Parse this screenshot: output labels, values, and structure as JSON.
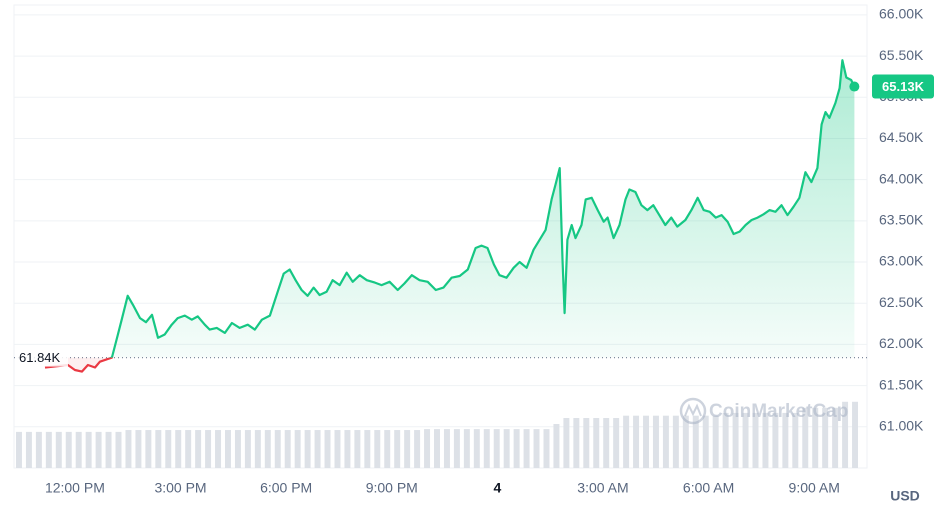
{
  "chart_data": {
    "type": "line",
    "x": [
      11.15,
      11.8,
      12.0,
      12.2,
      12.37,
      12.57,
      12.71,
      13.05,
      13.22,
      13.33,
      13.5,
      13.65,
      13.85,
      14.02,
      14.19,
      14.36,
      14.55,
      14.75,
      14.92,
      15.12,
      15.32,
      15.49,
      15.69,
      15.83,
      16.03,
      16.26,
      16.46,
      16.68,
      16.91,
      17.11,
      17.31,
      17.54,
      17.76,
      17.93,
      18.1,
      18.27,
      18.44,
      18.61,
      18.78,
      18.95,
      19.15,
      19.32,
      19.52,
      19.72,
      19.89,
      20.09,
      20.29,
      20.52,
      20.71,
      20.94,
      21.17,
      21.36,
      21.57,
      21.79,
      22.02,
      22.25,
      22.47,
      22.7,
      22.93,
      23.16,
      23.38,
      23.55,
      23.72,
      23.9,
      24.06,
      24.26,
      24.46,
      24.63,
      24.83,
      25.03,
      25.2,
      25.37,
      25.54,
      25.65,
      25.77,
      25.85,
      25.91,
      25.99,
      26.11,
      26.22,
      26.39,
      26.51,
      26.68,
      26.85,
      27.02,
      27.13,
      27.3,
      27.47,
      27.64,
      27.75,
      27.92,
      28.09,
      28.26,
      28.43,
      28.6,
      28.77,
      28.94,
      29.11,
      29.34,
      29.51,
      29.69,
      29.86,
      30.03,
      30.2,
      30.37,
      30.54,
      30.71,
      30.88,
      31.05,
      31.22,
      31.39,
      31.56,
      31.73,
      31.9,
      32.07,
      32.24,
      32.41,
      32.58,
      32.75,
      32.92,
      33.09,
      33.21,
      33.32,
      33.43,
      33.6,
      33.72,
      33.8,
      33.91,
      34.05,
      34.14
    ],
    "series": [
      {
        "color": "#16c784",
        "negative_color": "#ea3943",
        "values": [
          61720,
          61750,
          61690,
          61670,
          61750,
          61720,
          61790,
          61840,
          62120,
          62300,
          62590,
          62480,
          62320,
          62270,
          62360,
          62080,
          62120,
          62240,
          62320,
          62350,
          62300,
          62340,
          62240,
          62180,
          62200,
          62140,
          62260,
          62200,
          62240,
          62180,
          62300,
          62350,
          62640,
          62860,
          62910,
          62780,
          62660,
          62590,
          62690,
          62600,
          62640,
          62780,
          62720,
          62870,
          62760,
          62840,
          62780,
          62750,
          62720,
          62760,
          62660,
          62740,
          62840,
          62780,
          62760,
          62660,
          62690,
          62810,
          62830,
          62910,
          63170,
          63200,
          63170,
          62970,
          62840,
          62810,
          62930,
          63000,
          62930,
          63150,
          63270,
          63390,
          63760,
          63940,
          64140,
          63030,
          62380,
          63270,
          63450,
          63290,
          63450,
          63760,
          63780,
          63630,
          63490,
          63540,
          63290,
          63450,
          63760,
          63880,
          63850,
          63690,
          63630,
          63690,
          63570,
          63450,
          63540,
          63430,
          63510,
          63630,
          63780,
          63630,
          63610,
          63540,
          63570,
          63490,
          63340,
          63370,
          63450,
          63510,
          63540,
          63580,
          63630,
          63610,
          63690,
          63570,
          63670,
          63780,
          64090,
          63970,
          64140,
          64670,
          64820,
          64750,
          64930,
          65110,
          65450,
          65240,
          65210,
          65130
        ]
      }
    ],
    "xlim": [
      10.27,
      34.3
    ],
    "xticks": [
      {
        "value": 12,
        "label": "12:00 PM"
      },
      {
        "value": 15,
        "label": "3:00 PM"
      },
      {
        "value": 18,
        "label": "6:00 PM"
      },
      {
        "value": 21,
        "label": "9:00 PM"
      },
      {
        "value": 24,
        "label": "4"
      },
      {
        "value": 27,
        "label": "3:00 AM"
      },
      {
        "value": 30,
        "label": "6:00 AM"
      },
      {
        "value": 33,
        "label": "9:00 AM"
      }
    ],
    "ylim": [
      60500,
      66120
    ],
    "yticks": [
      {
        "value": 66000,
        "label": "66.00K"
      },
      {
        "value": 65500,
        "label": "65.50K"
      },
      {
        "value": 65000,
        "label": "65.00K"
      },
      {
        "value": 64500,
        "label": "64.50K"
      },
      {
        "value": 64000,
        "label": "64.00K"
      },
      {
        "value": 63500,
        "label": "63.50K"
      },
      {
        "value": 63000,
        "label": "63.00K"
      },
      {
        "value": 62500,
        "label": "62.50K"
      },
      {
        "value": 62000,
        "label": "62.00K"
      },
      {
        "value": 61500,
        "label": "61.50K"
      },
      {
        "value": 61000,
        "label": "61.00K"
      }
    ],
    "grid": true,
    "baseline": {
      "value": 61840,
      "label": "61.84K"
    },
    "last_price": {
      "value": 65130,
      "label": "65.13K"
    },
    "currency": "USD",
    "watermark": "CoinMarketCap",
    "volume": {
      "color": "#dde1e7",
      "y2lim": [
        0,
        100
      ],
      "values": [
        7.8,
        7.8,
        7.8,
        7.8,
        7.8,
        7.8,
        7.8,
        7.8,
        7.8,
        7.8,
        7.8,
        8.2,
        8.2,
        8.2,
        8.2,
        8.2,
        8.2,
        8.2,
        8.2,
        8.2,
        8.2,
        8.2,
        8.2,
        8.2,
        8.2,
        8.2,
        8.2,
        8.2,
        8.2,
        8.2,
        8.2,
        8.2,
        8.2,
        8.2,
        8.2,
        8.2,
        8.2,
        8.2,
        8.2,
        8.2,
        8.2,
        8.4,
        8.4,
        8.4,
        8.4,
        8.4,
        8.4,
        8.4,
        8.4,
        8.4,
        8.4,
        8.4,
        8.4,
        8.4,
        9.5,
        10.8,
        10.8,
        10.8,
        10.8,
        10.8,
        10.8,
        11.3,
        11.3,
        11.3,
        11.3,
        11.3,
        11.3,
        11.3,
        11.3,
        11.3,
        11.3,
        11.9,
        11.9,
        11.9,
        11.9,
        11.9,
        11.9,
        11.9,
        11.9,
        13.0,
        13.0,
        13.0,
        13.0,
        14.3,
        14.3
      ]
    }
  }
}
